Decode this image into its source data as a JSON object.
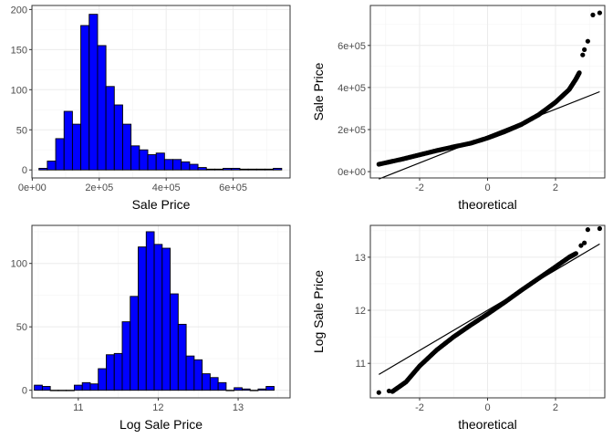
{
  "chart_data": [
    {
      "id": "hist-sale",
      "type": "bar",
      "subtype": "histogram",
      "xlabel": "Sale Price",
      "ylabel": "",
      "xlim": [
        -1000,
        770000
      ],
      "ylim": [
        -10,
        205
      ],
      "xticks": [
        0,
        200000,
        400000,
        600000
      ],
      "xtick_labels": [
        "0e+00",
        "2e+05",
        "4e+05",
        "6e+05"
      ],
      "yticks": [
        0,
        50,
        100,
        150,
        200
      ],
      "ytick_labels": [
        "0",
        "50",
        "100",
        "150",
        "200"
      ],
      "grid": true,
      "bar_color": "#0000ff",
      "bin_start": 20000,
      "bin_width": 25000,
      "values": [
        2,
        11,
        39,
        73,
        57,
        180,
        194,
        155,
        104,
        81,
        57,
        30,
        25,
        19,
        21,
        13,
        13,
        10,
        7,
        3,
        1,
        1,
        2,
        2,
        1,
        1,
        1,
        1,
        2
      ]
    },
    {
      "id": "qq-sale",
      "type": "scatter",
      "subtype": "qq",
      "xlabel": "theoretical",
      "ylabel": "Sale Price",
      "xlim": [
        -3.45,
        3.45
      ],
      "ylim": [
        -30000,
        790000
      ],
      "xticks": [
        -2,
        0,
        2
      ],
      "xtick_labels": [
        "-2",
        "0",
        "2"
      ],
      "yticks": [
        0,
        200000,
        400000,
        600000
      ],
      "ytick_labels": [
        "0e+00",
        "2e+05",
        "4e+05",
        "6e+05"
      ],
      "grid": true,
      "ref_line": {
        "x": [
          -3.2,
          3.3
        ],
        "y": [
          -35000,
          380000
        ]
      },
      "curve": [
        [
          -3.2,
          35000
        ],
        [
          -2.5,
          60000
        ],
        [
          -2.0,
          80000
        ],
        [
          -1.5,
          100000
        ],
        [
          -1.0,
          118000
        ],
        [
          -0.5,
          135000
        ],
        [
          0,
          160000
        ],
        [
          0.5,
          190000
        ],
        [
          1.0,
          225000
        ],
        [
          1.5,
          270000
        ],
        [
          2.0,
          330000
        ],
        [
          2.4,
          390000
        ],
        [
          2.6,
          440000
        ],
        [
          2.7,
          470000
        ]
      ],
      "outliers": [
        [
          2.8,
          555000
        ],
        [
          2.85,
          580000
        ],
        [
          2.95,
          620000
        ],
        [
          3.1,
          745000
        ],
        [
          3.3,
          755000
        ]
      ]
    },
    {
      "id": "hist-log",
      "type": "bar",
      "subtype": "histogram",
      "xlabel": "Log Sale Price",
      "ylabel": "",
      "xlim": [
        10.42,
        13.65
      ],
      "ylim": [
        -6,
        130
      ],
      "xticks": [
        11,
        12,
        13
      ],
      "xtick_labels": [
        "11",
        "12",
        "13"
      ],
      "yticks": [
        0,
        50,
        100
      ],
      "ytick_labels": [
        "0",
        "50",
        "100"
      ],
      "grid": true,
      "bar_color": "#0000ff",
      "bin_start": 10.45,
      "bin_width": 0.1,
      "values": [
        4,
        3,
        0,
        0,
        0,
        4,
        6,
        5,
        17,
        28,
        29,
        54,
        74,
        113,
        125,
        115,
        112,
        76,
        52,
        27,
        24,
        13,
        10,
        6,
        0,
        2,
        1,
        0,
        1,
        3
      ]
    },
    {
      "id": "qq-log",
      "type": "scatter",
      "subtype": "qq",
      "xlabel": "theoretical",
      "ylabel": "Log Sale Price",
      "xlim": [
        -3.45,
        3.45
      ],
      "ylim": [
        10.35,
        13.6
      ],
      "xticks": [
        -2,
        0,
        2
      ],
      "xtick_labels": [
        "-2",
        "0",
        "2"
      ],
      "yticks": [
        11,
        12,
        13
      ],
      "ytick_labels": [
        "11",
        "12",
        "13"
      ],
      "grid": true,
      "ref_line": {
        "x": [
          -3.2,
          3.3
        ],
        "y": [
          10.79,
          13.25
        ]
      },
      "curve": [
        [
          -2.8,
          10.47
        ],
        [
          -2.4,
          10.65
        ],
        [
          -2.0,
          10.95
        ],
        [
          -1.5,
          11.25
        ],
        [
          -1.0,
          11.5
        ],
        [
          -0.5,
          11.72
        ],
        [
          0,
          11.93
        ],
        [
          0.5,
          12.15
        ],
        [
          1.0,
          12.38
        ],
        [
          1.5,
          12.6
        ],
        [
          2.0,
          12.82
        ],
        [
          2.4,
          13.0
        ],
        [
          2.6,
          13.07
        ]
      ],
      "outliers": [
        [
          -3.2,
          10.45
        ],
        [
          -2.9,
          10.48
        ],
        [
          2.75,
          13.22
        ],
        [
          2.85,
          13.27
        ],
        [
          2.95,
          13.52
        ],
        [
          3.3,
          13.54
        ]
      ]
    }
  ]
}
